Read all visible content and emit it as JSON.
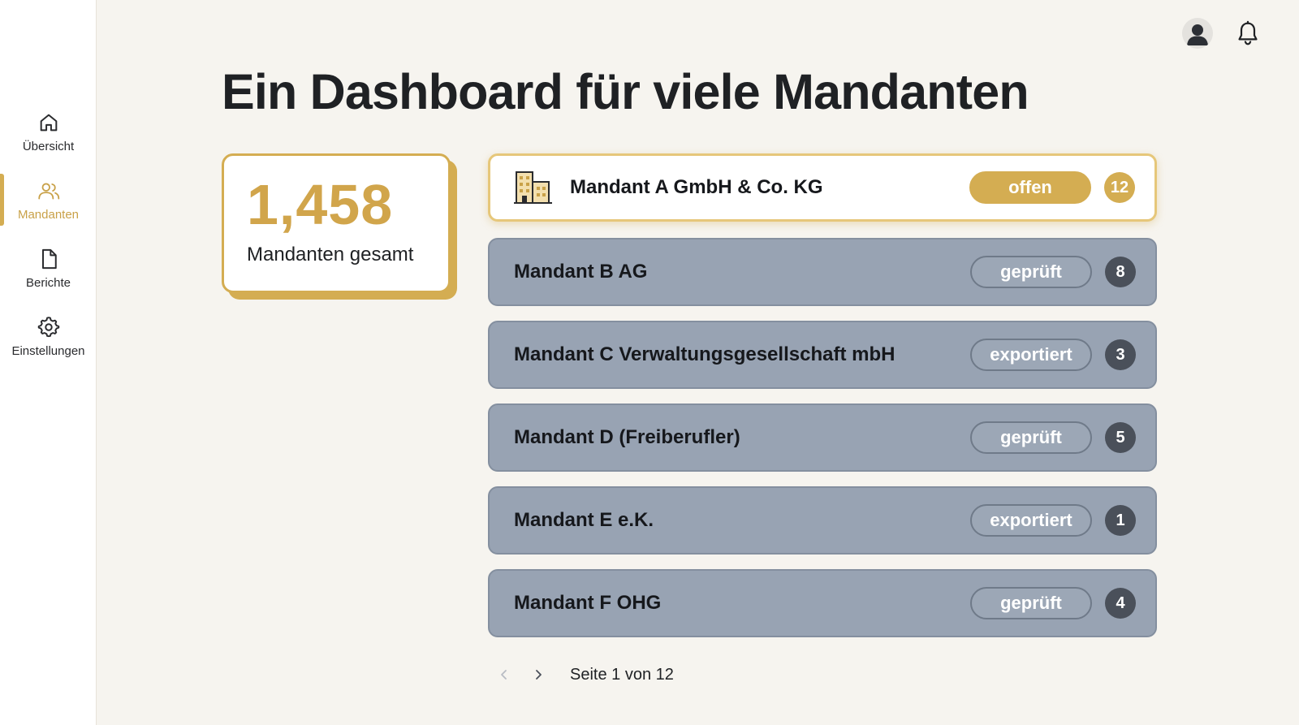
{
  "sidebar": {
    "items": [
      {
        "label": "Übersicht",
        "icon": "home-icon",
        "active": false
      },
      {
        "label": "Mandanten",
        "icon": "users-icon",
        "active": true
      },
      {
        "label": "Berichte",
        "icon": "document-icon",
        "active": false
      },
      {
        "label": "Einstellungen",
        "icon": "gear-icon",
        "active": false
      }
    ]
  },
  "header": {
    "icons": [
      "user-avatar-icon",
      "bell-icon"
    ]
  },
  "main": {
    "title": "Ein Dashboard für viele Mandanten",
    "stat": {
      "value": "1,458",
      "label": "Mandanten gesamt"
    },
    "clients": [
      {
        "name": "Mandant A GmbH & Co. KG",
        "status": "offen",
        "count": "12",
        "highlighted": true,
        "icon": "building-icon"
      },
      {
        "name": "Mandant B AG",
        "status": "geprüft",
        "count": "8"
      },
      {
        "name": "Mandant C Verwaltungsgesellschaft mbH",
        "status": "exportiert",
        "count": "3"
      },
      {
        "name": "Mandant D (Freiberufler)",
        "status": "geprüft",
        "count": "5"
      },
      {
        "name": "Mandant E e.K.",
        "status": "exportiert",
        "count": "1"
      },
      {
        "name": "Mandant F OHG",
        "status": "geprüft",
        "count": "4"
      }
    ],
    "pagination": {
      "text": "Seite 1 von 12"
    }
  },
  "colors": {
    "accent": "#d4ad52",
    "row_bg": "#98a3b3",
    "badge_dark": "#4a505a",
    "page_bg": "#f6f4ef"
  }
}
